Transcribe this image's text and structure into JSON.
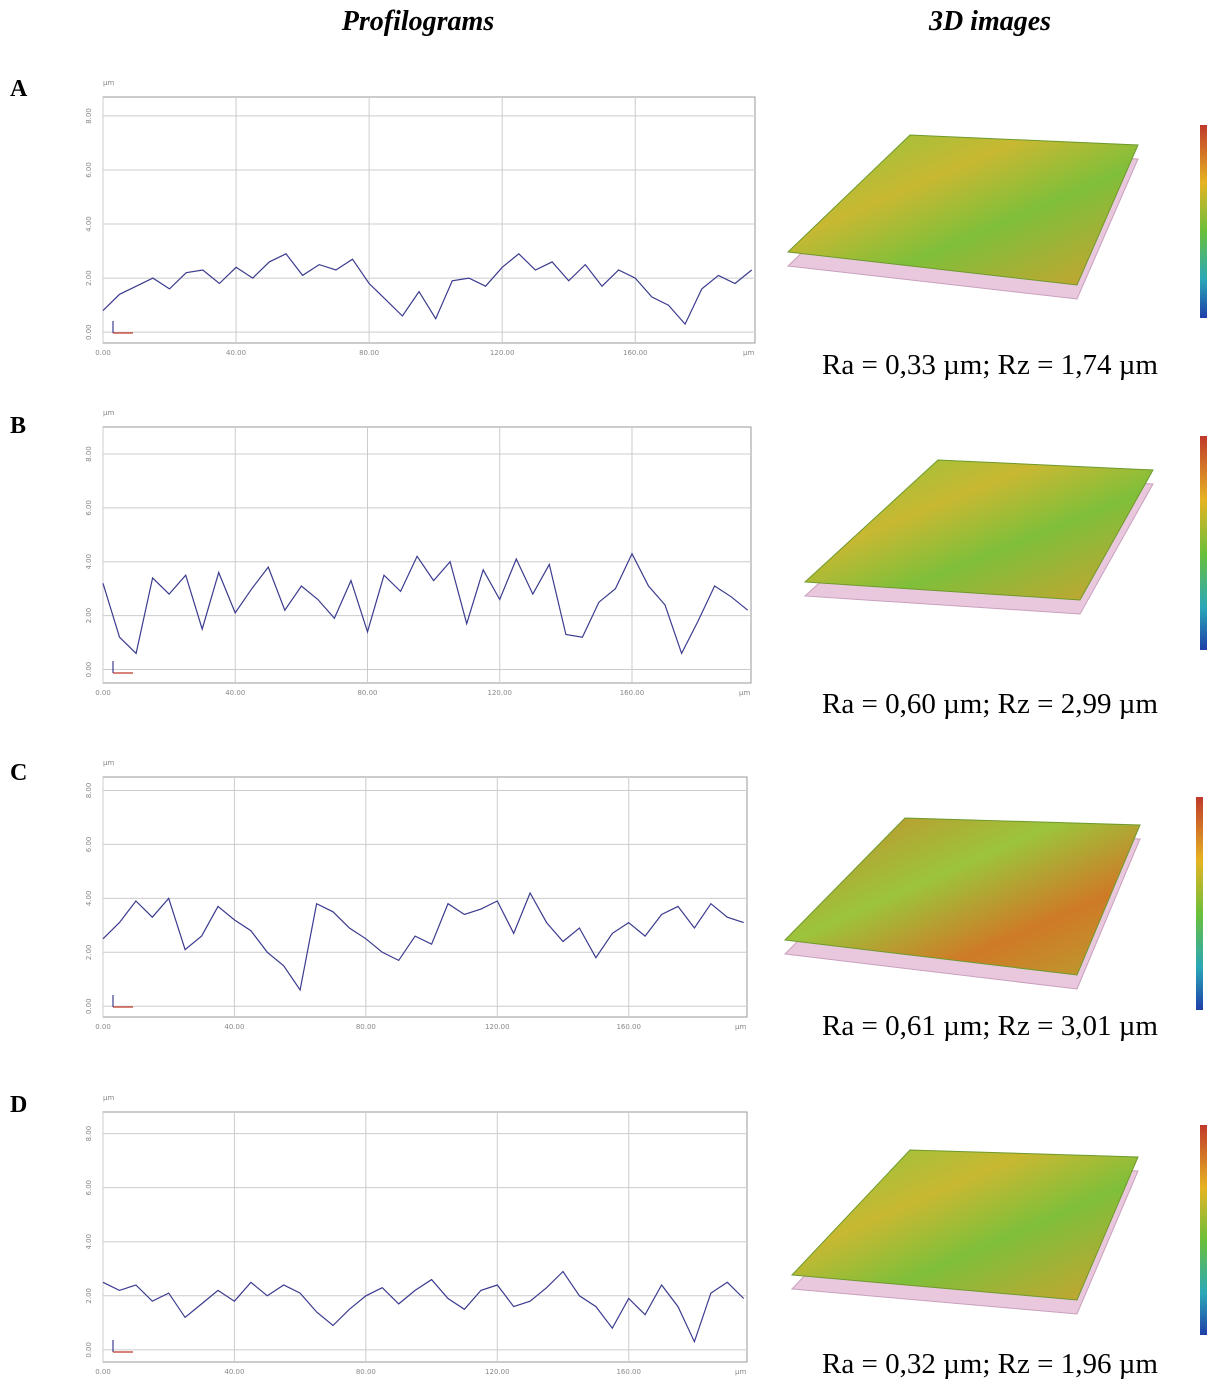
{
  "header": {
    "left": "Profilograms",
    "right": "3D images"
  },
  "chart_data": [
    {
      "type": "line",
      "panel": "A",
      "y_unit": "µm",
      "x_unit": "µm",
      "color": "#3b3b8f",
      "grid": true,
      "x": [
        0,
        5,
        10,
        15,
        20,
        25,
        30,
        35,
        40,
        45,
        50,
        55,
        60,
        65,
        70,
        75,
        80,
        85,
        90,
        95,
        100,
        105,
        110,
        115,
        120,
        125,
        130,
        135,
        140,
        145,
        150,
        155,
        160,
        165,
        170,
        175,
        180,
        185,
        190,
        195
      ],
      "values": [
        0.8,
        1.4,
        1.7,
        2.0,
        1.6,
        2.2,
        2.3,
        1.8,
        2.4,
        2.0,
        2.6,
        2.9,
        2.1,
        2.5,
        2.3,
        2.7,
        1.8,
        1.2,
        0.6,
        1.5,
        0.5,
        1.9,
        2.0,
        1.7,
        2.4,
        2.9,
        2.3,
        2.6,
        1.9,
        2.5,
        1.7,
        2.3,
        2.0,
        1.3,
        1.0,
        0.3,
        1.6,
        2.1,
        1.8,
        2.3
      ],
      "xlim": [
        0,
        196
      ],
      "ylim": [
        -0.4,
        8.7
      ],
      "xticks": [
        {
          "value": 0,
          "label": "0.00"
        },
        {
          "value": 40,
          "label": "40.00"
        },
        {
          "value": 80,
          "label": "80.00"
        },
        {
          "value": 120,
          "label": "120.00"
        },
        {
          "value": 160,
          "label": "160.00"
        }
      ],
      "yticks": [
        {
          "value": 0,
          "label": "0.00"
        },
        {
          "value": 2,
          "label": "2.00"
        },
        {
          "value": 4,
          "label": "4.00"
        },
        {
          "value": 6,
          "label": "6.00"
        },
        {
          "value": 8,
          "label": "8.00"
        }
      ],
      "caption": "Ra = 0,33 µm; Rz = 1,74 µm"
    },
    {
      "type": "line",
      "panel": "B",
      "y_unit": "µm",
      "x_unit": "µm",
      "color": "#3b3b8f",
      "grid": true,
      "x": [
        0,
        5,
        10,
        15,
        20,
        25,
        30,
        35,
        40,
        45,
        50,
        55,
        60,
        65,
        70,
        75,
        80,
        85,
        90,
        95,
        100,
        105,
        110,
        115,
        120,
        125,
        130,
        135,
        140,
        145,
        150,
        155,
        160,
        165,
        170,
        175,
        180,
        185,
        190,
        195
      ],
      "values": [
        3.2,
        1.2,
        0.6,
        3.4,
        2.8,
        3.5,
        1.5,
        3.6,
        2.1,
        3.0,
        3.8,
        2.2,
        3.1,
        2.6,
        1.9,
        3.3,
        1.4,
        3.5,
        2.9,
        4.2,
        3.3,
        4.0,
        1.7,
        3.7,
        2.6,
        4.1,
        2.8,
        3.9,
        1.3,
        1.2,
        2.5,
        3.0,
        4.3,
        3.1,
        2.4,
        0.6,
        1.8,
        3.1,
        2.7,
        2.2
      ],
      "xlim": [
        0,
        196
      ],
      "ylim": [
        -0.5,
        9.0
      ],
      "xticks": [
        {
          "value": 0,
          "label": "0.00"
        },
        {
          "value": 40,
          "label": "40.00"
        },
        {
          "value": 80,
          "label": "80.00"
        },
        {
          "value": 120,
          "label": "120.00"
        },
        {
          "value": 160,
          "label": "160.00"
        }
      ],
      "yticks": [
        {
          "value": 0,
          "label": "0.00"
        },
        {
          "value": 2,
          "label": "2.00"
        },
        {
          "value": 4,
          "label": "4.00"
        },
        {
          "value": 6,
          "label": "6.00"
        },
        {
          "value": 8,
          "label": "8.00"
        }
      ],
      "caption": "Ra = 0,60 µm; Rz = 2,99 µm"
    },
    {
      "type": "line",
      "panel": "C",
      "y_unit": "µm",
      "x_unit": "µm",
      "color": "#3b3b8f",
      "grid": true,
      "x": [
        0,
        5,
        10,
        15,
        20,
        25,
        30,
        35,
        40,
        45,
        50,
        55,
        60,
        65,
        70,
        75,
        80,
        85,
        90,
        95,
        100,
        105,
        110,
        115,
        120,
        125,
        130,
        135,
        140,
        145,
        150,
        155,
        160,
        165,
        170,
        175,
        180,
        185,
        190,
        195
      ],
      "values": [
        2.5,
        3.1,
        3.9,
        3.3,
        4.0,
        2.1,
        2.6,
        3.7,
        3.2,
        2.8,
        2.0,
        1.5,
        0.6,
        3.8,
        3.5,
        2.9,
        2.5,
        2.0,
        1.7,
        2.6,
        2.3,
        3.8,
        3.4,
        3.6,
        3.9,
        2.7,
        4.2,
        3.1,
        2.4,
        2.9,
        1.8,
        2.7,
        3.1,
        2.6,
        3.4,
        3.7,
        2.9,
        3.8,
        3.3,
        3.1
      ],
      "xlim": [
        0,
        196
      ],
      "ylim": [
        -0.4,
        8.5
      ],
      "xticks": [
        {
          "value": 0,
          "label": "0.00"
        },
        {
          "value": 40,
          "label": "40.00"
        },
        {
          "value": 80,
          "label": "80.00"
        },
        {
          "value": 120,
          "label": "120.00"
        },
        {
          "value": 160,
          "label": "160.00"
        }
      ],
      "yticks": [
        {
          "value": 0,
          "label": "0.00"
        },
        {
          "value": 2,
          "label": "2.00"
        },
        {
          "value": 4,
          "label": "4.00"
        },
        {
          "value": 6,
          "label": "6.00"
        },
        {
          "value": 8,
          "label": "8.00"
        }
      ],
      "caption": "Ra = 0,61 µm; Rz = 3,01 µm"
    },
    {
      "type": "line",
      "panel": "D",
      "y_unit": "µm",
      "x_unit": "µm",
      "color": "#3b3b8f",
      "grid": true,
      "x": [
        0,
        5,
        10,
        15,
        20,
        25,
        30,
        35,
        40,
        45,
        50,
        55,
        60,
        65,
        70,
        75,
        80,
        85,
        90,
        95,
        100,
        105,
        110,
        115,
        120,
        125,
        130,
        135,
        140,
        145,
        150,
        155,
        160,
        165,
        170,
        175,
        180,
        185,
        190,
        195
      ],
      "values": [
        2.5,
        2.2,
        2.4,
        1.8,
        2.1,
        1.2,
        1.7,
        2.2,
        1.8,
        2.5,
        2.0,
        2.4,
        2.1,
        1.4,
        0.9,
        1.5,
        2.0,
        2.3,
        1.7,
        2.2,
        2.6,
        1.9,
        1.5,
        2.2,
        2.4,
        1.6,
        1.8,
        2.3,
        2.9,
        2.0,
        1.6,
        0.8,
        1.9,
        1.3,
        2.4,
        1.6,
        0.3,
        2.1,
        2.5,
        1.9
      ],
      "xlim": [
        0,
        196
      ],
      "ylim": [
        -0.45,
        8.8
      ],
      "xticks": [
        {
          "value": 0,
          "label": "0.00"
        },
        {
          "value": 40,
          "label": "40.00"
        },
        {
          "value": 80,
          "label": "80.00"
        },
        {
          "value": 120,
          "label": "120.00"
        },
        {
          "value": 160,
          "label": "160.00"
        }
      ],
      "yticks": [
        {
          "value": 0,
          "label": "0.00"
        },
        {
          "value": 2,
          "label": "2.00"
        },
        {
          "value": 4,
          "label": "4.00"
        },
        {
          "value": 6,
          "label": "6.00"
        },
        {
          "value": 8,
          "label": "8.00"
        }
      ],
      "caption": "Ra = 0,32 µm; Rz = 1,96 µm"
    }
  ]
}
